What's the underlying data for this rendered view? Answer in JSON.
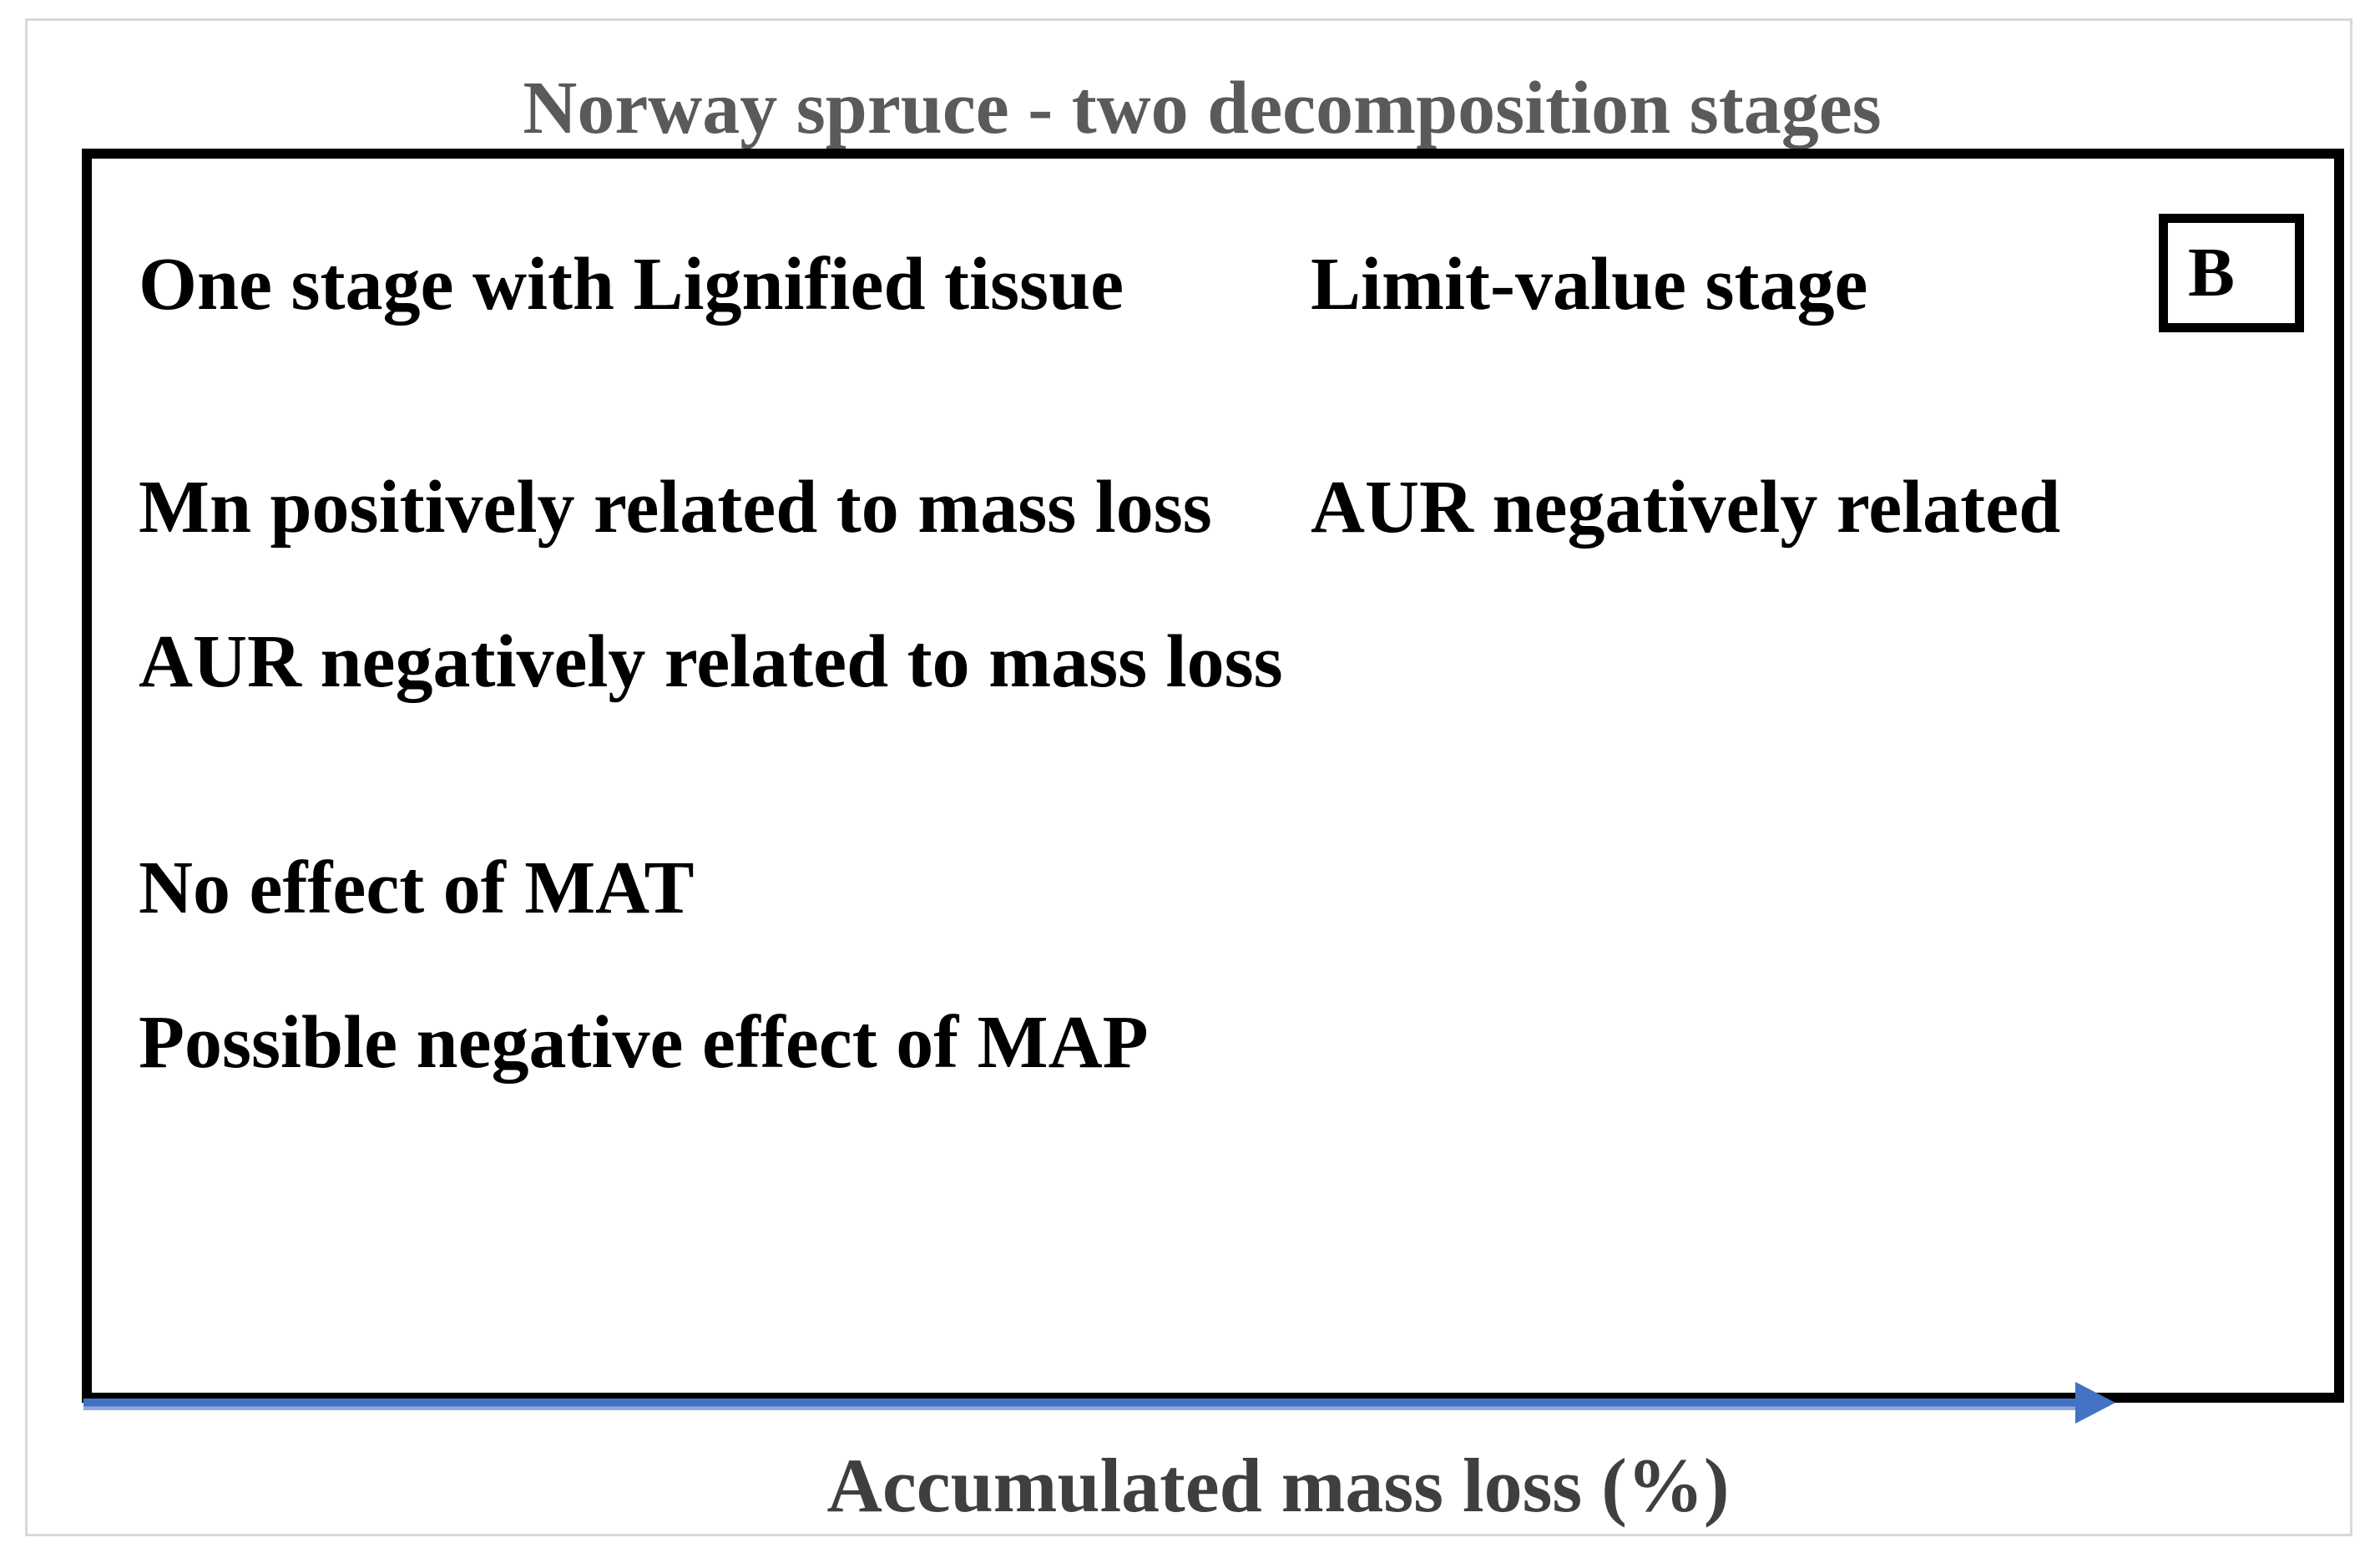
{
  "figure": {
    "title": "Norway spruce - two decomposition stages",
    "panel_label": "B",
    "columns": [
      {
        "header": "One stage with Lignified tissue",
        "items": [
          "Mn positively related to mass loss",
          "AUR negatively related to mass loss",
          "No effect of MAT",
          "Possible negative effect of MAP"
        ]
      },
      {
        "header": "Limit-value stage",
        "items": [
          "AUR negatively related"
        ]
      }
    ],
    "x_axis": {
      "label": "Accumulated mass loss (%)",
      "arrow_icon": "right-arrow"
    },
    "colors": {
      "title_text": "#5a5a5a",
      "body_text": "#000000",
      "axis_label_text": "#3f3f3f",
      "arrow_blue": "#4472c4",
      "box_border": "#000000",
      "frame_border": "#d9d9d9"
    }
  }
}
